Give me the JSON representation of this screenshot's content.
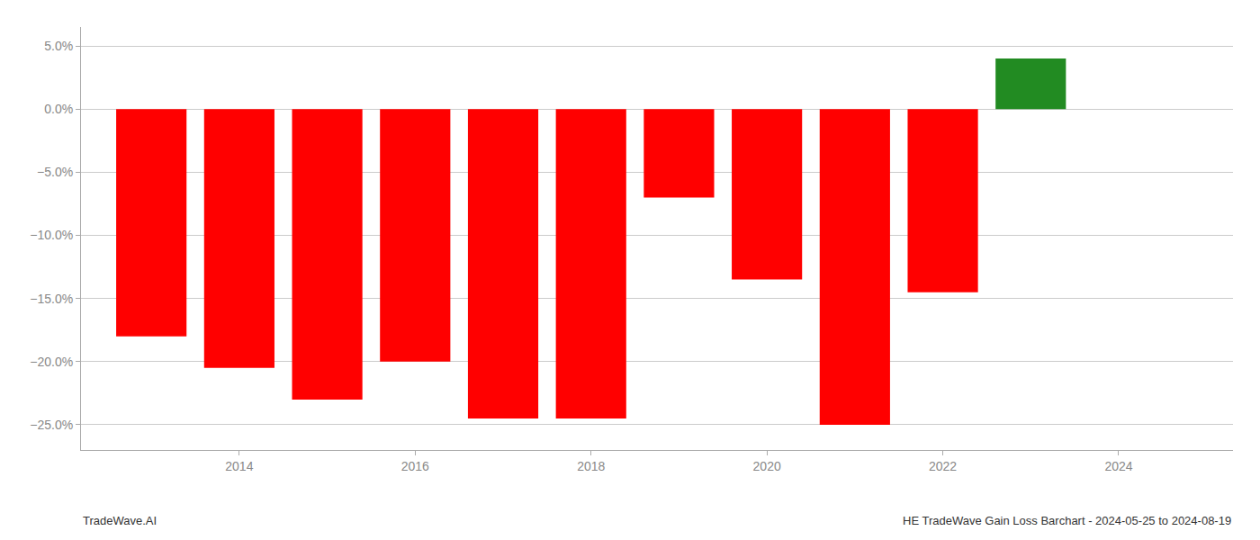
{
  "chart_data": {
    "type": "bar",
    "x": [
      2013,
      2014,
      2015,
      2016,
      2017,
      2018,
      2019,
      2020,
      2021,
      2022,
      2023
    ],
    "values": [
      -0.18,
      -0.205,
      -0.23,
      -0.2,
      -0.245,
      -0.245,
      -0.07,
      -0.135,
      -0.25,
      -0.145,
      0.04
    ],
    "colors": [
      "#ff0000",
      "#ff0000",
      "#ff0000",
      "#ff0000",
      "#ff0000",
      "#ff0000",
      "#ff0000",
      "#ff0000",
      "#ff0000",
      "#ff0000",
      "#228B22"
    ],
    "xlim": [
      2012.2,
      2025.3
    ],
    "xticks": [
      2014,
      2016,
      2018,
      2020,
      2022,
      2024
    ],
    "ylim": [
      -0.27,
      0.065
    ],
    "yticks": [
      {
        "value": -0.25,
        "label": "−25.0%"
      },
      {
        "value": -0.2,
        "label": "−20.0%"
      },
      {
        "value": -0.15,
        "label": "−15.0%"
      },
      {
        "value": -0.1,
        "label": "−10.0%"
      },
      {
        "value": -0.05,
        "label": "−5.0%"
      },
      {
        "value": 0.0,
        "label": "0.0%"
      },
      {
        "value": 0.05,
        "label": "5.0%"
      }
    ],
    "grid": "y",
    "annotations": [
      "TradeWave.AI",
      "HE TradeWave Gain Loss Barchart - 2024-05-25 to 2024-08-19"
    ]
  }
}
